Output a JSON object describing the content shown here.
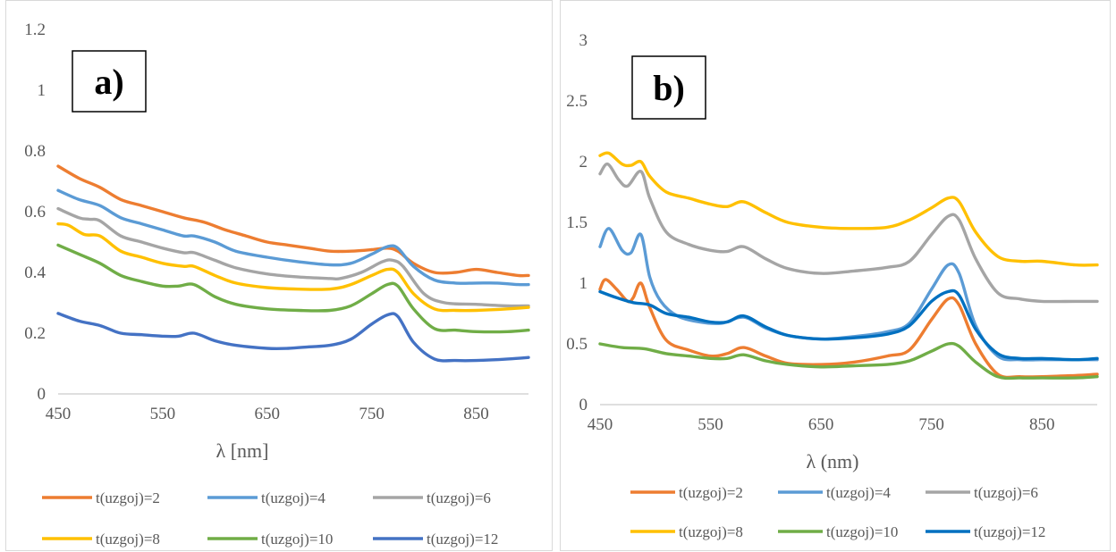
{
  "chart_data": [
    {
      "type": "line",
      "panel_label": "a)",
      "xlabel": "λ [nm]",
      "ylabel": "",
      "xlim": [
        450,
        900
      ],
      "ylim": [
        0,
        1.2
      ],
      "xticks": [
        450,
        550,
        650,
        750,
        850
      ],
      "yticks": [
        0,
        0.2,
        0.4,
        0.6,
        0.8,
        1,
        1.2
      ],
      "ytick_labels": [
        "0",
        "0.2",
        "0.4",
        "0.6",
        "0.8",
        "1",
        "1.2"
      ],
      "grid": false,
      "legend": "bottom",
      "series": [
        {
          "name": "t(uzgoj)=2",
          "color": "#ED7D31",
          "x": [
            450,
            470,
            490,
            510,
            530,
            550,
            570,
            590,
            610,
            630,
            650,
            670,
            690,
            710,
            730,
            750,
            765,
            775,
            790,
            810,
            830,
            850,
            870,
            890,
            900
          ],
          "y": [
            0.75,
            0.71,
            0.68,
            0.64,
            0.62,
            0.6,
            0.58,
            0.565,
            0.54,
            0.52,
            0.5,
            0.49,
            0.48,
            0.47,
            0.47,
            0.475,
            0.48,
            0.47,
            0.43,
            0.4,
            0.4,
            0.41,
            0.4,
            0.39,
            0.39
          ]
        },
        {
          "name": "t(uzgoj)=4",
          "color": "#5B9BD5",
          "x": [
            450,
            470,
            490,
            510,
            530,
            550,
            570,
            580,
            600,
            620,
            650,
            680,
            710,
            730,
            750,
            765,
            775,
            790,
            810,
            830,
            850,
            870,
            890,
            900
          ],
          "y": [
            0.67,
            0.64,
            0.62,
            0.58,
            0.56,
            0.54,
            0.52,
            0.52,
            0.5,
            0.47,
            0.45,
            0.435,
            0.425,
            0.43,
            0.46,
            0.485,
            0.48,
            0.42,
            0.375,
            0.365,
            0.365,
            0.365,
            0.36,
            0.36
          ]
        },
        {
          "name": "t(uzgoj)=6",
          "color": "#A5A5A5",
          "x": [
            450,
            470,
            480,
            490,
            510,
            530,
            550,
            570,
            580,
            600,
            620,
            650,
            680,
            710,
            720,
            740,
            760,
            770,
            780,
            800,
            820,
            850,
            880,
            900
          ],
          "y": [
            0.61,
            0.58,
            0.575,
            0.57,
            0.52,
            0.5,
            0.48,
            0.465,
            0.465,
            0.44,
            0.415,
            0.395,
            0.385,
            0.38,
            0.38,
            0.4,
            0.435,
            0.44,
            0.42,
            0.33,
            0.3,
            0.295,
            0.29,
            0.29
          ]
        },
        {
          "name": "t(uzgoj)=8",
          "color": "#FFC000",
          "x": [
            450,
            460,
            475,
            490,
            510,
            530,
            550,
            570,
            580,
            600,
            620,
            650,
            680,
            710,
            730,
            750,
            765,
            775,
            790,
            810,
            830,
            850,
            880,
            900
          ],
          "y": [
            0.56,
            0.555,
            0.525,
            0.52,
            0.47,
            0.45,
            0.43,
            0.42,
            0.42,
            0.39,
            0.365,
            0.35,
            0.345,
            0.345,
            0.36,
            0.39,
            0.41,
            0.4,
            0.33,
            0.28,
            0.275,
            0.275,
            0.28,
            0.285
          ]
        },
        {
          "name": "t(uzgoj)=10",
          "color": "#70AD47",
          "x": [
            450,
            470,
            490,
            510,
            530,
            550,
            565,
            580,
            600,
            620,
            650,
            680,
            710,
            730,
            750,
            765,
            775,
            790,
            810,
            830,
            850,
            880,
            900
          ],
          "y": [
            0.49,
            0.46,
            0.43,
            0.39,
            0.37,
            0.355,
            0.355,
            0.36,
            0.32,
            0.295,
            0.28,
            0.275,
            0.275,
            0.29,
            0.33,
            0.36,
            0.355,
            0.28,
            0.215,
            0.21,
            0.205,
            0.205,
            0.21
          ]
        },
        {
          "name": "t(uzgoj)=12",
          "color": "#4472C4",
          "x": [
            450,
            470,
            490,
            510,
            530,
            550,
            565,
            580,
            600,
            620,
            650,
            670,
            690,
            710,
            730,
            750,
            765,
            775,
            790,
            810,
            830,
            850,
            880,
            900
          ],
          "y": [
            0.265,
            0.24,
            0.225,
            0.2,
            0.195,
            0.19,
            0.19,
            0.2,
            0.175,
            0.16,
            0.15,
            0.15,
            0.155,
            0.16,
            0.18,
            0.23,
            0.26,
            0.255,
            0.17,
            0.115,
            0.11,
            0.11,
            0.115,
            0.12
          ]
        }
      ]
    },
    {
      "type": "line",
      "panel_label": "b)",
      "xlabel": "λ (nm)",
      "ylabel": "",
      "xlim": [
        450,
        900
      ],
      "ylim": [
        0,
        3
      ],
      "xticks": [
        450,
        550,
        650,
        750,
        850
      ],
      "yticks": [
        0,
        0.5,
        1,
        1.5,
        2,
        2.5,
        3
      ],
      "ytick_labels": [
        "0",
        "0.5",
        "1",
        "1.5",
        "2",
        "2.5",
        "3"
      ],
      "grid": false,
      "legend": "bottom",
      "series": [
        {
          "name": "t(uzgoj)=2",
          "color": "#ED7D31",
          "x": [
            450,
            455,
            465,
            475,
            480,
            487,
            495,
            510,
            530,
            550,
            565,
            580,
            600,
            620,
            650,
            680,
            710,
            730,
            750,
            765,
            775,
            790,
            810,
            830,
            850,
            880,
            900
          ],
          "y": [
            0.95,
            1.03,
            0.95,
            0.85,
            0.88,
            1.0,
            0.8,
            0.53,
            0.45,
            0.4,
            0.42,
            0.47,
            0.4,
            0.34,
            0.33,
            0.35,
            0.4,
            0.45,
            0.7,
            0.87,
            0.82,
            0.5,
            0.25,
            0.23,
            0.23,
            0.24,
            0.25
          ]
        },
        {
          "name": "t(uzgoj)=4",
          "color": "#5B9BD5",
          "x": [
            450,
            458,
            470,
            478,
            487,
            495,
            505,
            520,
            540,
            560,
            580,
            600,
            620,
            650,
            680,
            710,
            730,
            750,
            765,
            775,
            790,
            810,
            830,
            850,
            880,
            900
          ],
          "y": [
            1.3,
            1.45,
            1.27,
            1.25,
            1.4,
            1.05,
            0.85,
            0.73,
            0.68,
            0.67,
            0.72,
            0.63,
            0.57,
            0.54,
            0.56,
            0.6,
            0.67,
            0.95,
            1.15,
            1.08,
            0.65,
            0.4,
            0.37,
            0.37,
            0.37,
            0.37
          ]
        },
        {
          "name": "t(uzgoj)=6",
          "color": "#A5A5A5",
          "x": [
            450,
            457,
            467,
            475,
            487,
            495,
            510,
            530,
            550,
            565,
            580,
            600,
            620,
            650,
            680,
            710,
            730,
            750,
            765,
            775,
            790,
            810,
            830,
            850,
            880,
            900
          ],
          "y": [
            1.9,
            1.98,
            1.85,
            1.8,
            1.92,
            1.7,
            1.42,
            1.32,
            1.27,
            1.26,
            1.3,
            1.2,
            1.12,
            1.08,
            1.1,
            1.13,
            1.18,
            1.4,
            1.55,
            1.52,
            1.2,
            0.92,
            0.87,
            0.85,
            0.85,
            0.85
          ]
        },
        {
          "name": "t(uzgoj)=8",
          "color": "#FFC000",
          "x": [
            450,
            458,
            470,
            478,
            487,
            495,
            510,
            530,
            550,
            565,
            580,
            600,
            620,
            650,
            680,
            710,
            730,
            750,
            765,
            775,
            790,
            810,
            830,
            850,
            880,
            900
          ],
          "y": [
            2.05,
            2.07,
            1.98,
            1.97,
            2.0,
            1.88,
            1.75,
            1.7,
            1.65,
            1.63,
            1.67,
            1.58,
            1.5,
            1.46,
            1.45,
            1.46,
            1.52,
            1.62,
            1.7,
            1.67,
            1.42,
            1.22,
            1.18,
            1.18,
            1.15,
            1.15
          ]
        },
        {
          "name": "t(uzgoj)=10",
          "color": "#70AD47",
          "x": [
            450,
            470,
            490,
            510,
            530,
            550,
            565,
            580,
            600,
            620,
            650,
            680,
            710,
            730,
            750,
            765,
            775,
            790,
            810,
            830,
            850,
            880,
            900
          ],
          "y": [
            0.5,
            0.47,
            0.46,
            0.42,
            0.4,
            0.38,
            0.38,
            0.41,
            0.36,
            0.33,
            0.31,
            0.32,
            0.33,
            0.36,
            0.44,
            0.5,
            0.48,
            0.35,
            0.23,
            0.22,
            0.22,
            0.22,
            0.23
          ]
        },
        {
          "name": "t(uzgoj)=12",
          "color": "#0070C0",
          "x": [
            450,
            465,
            480,
            495,
            510,
            530,
            550,
            565,
            580,
            600,
            620,
            650,
            680,
            710,
            730,
            750,
            765,
            775,
            790,
            810,
            830,
            850,
            880,
            900
          ],
          "y": [
            0.93,
            0.88,
            0.84,
            0.82,
            0.75,
            0.72,
            0.68,
            0.68,
            0.73,
            0.64,
            0.57,
            0.54,
            0.55,
            0.58,
            0.65,
            0.85,
            0.93,
            0.9,
            0.62,
            0.42,
            0.38,
            0.38,
            0.37,
            0.38
          ]
        }
      ]
    }
  ]
}
